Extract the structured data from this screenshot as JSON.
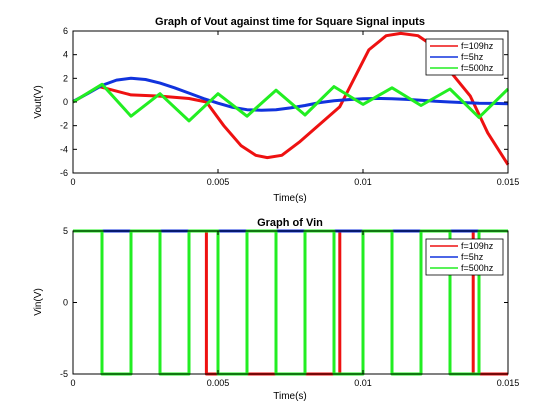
{
  "chart_data": [
    {
      "type": "line",
      "title": "Graph of Vout against time for Square Signal inputs",
      "xlabel": "Time(s)",
      "ylabel": "Vout(V)",
      "xlim": [
        0,
        0.015
      ],
      "ylim": [
        -6,
        6
      ],
      "xticks": [
        0,
        0.005,
        0.01,
        0.015
      ],
      "xtick_labels": [
        "0",
        "0.005",
        "0.01",
        "0.015"
      ],
      "yticks": [
        -6,
        -4,
        -2,
        0,
        2,
        4,
        6
      ],
      "ytick_labels": [
        "-6",
        "-4",
        "-2",
        "0",
        "2",
        "4",
        "6"
      ],
      "grid": false,
      "legend_position": "top-right",
      "series": [
        {
          "name": "f=109hz",
          "color": "#ee1111",
          "x": [
            0,
            0.0009,
            0.002,
            0.003,
            0.004,
            0.0046,
            0.0052,
            0.0058,
            0.0063,
            0.0067,
            0.0072,
            0.0078,
            0.0085,
            0.0092,
            0.0097,
            0.0102,
            0.0108,
            0.0113,
            0.0119,
            0.0125,
            0.013,
            0.0137,
            0.0143,
            0.015
          ],
          "y": [
            0,
            1.3,
            0.6,
            0.5,
            0.3,
            0.0,
            -2.0,
            -3.7,
            -4.5,
            -4.7,
            -4.5,
            -3.4,
            -1.9,
            -0.4,
            2.0,
            4.4,
            5.6,
            5.8,
            5.6,
            4.6,
            2.6,
            0.5,
            -2.6,
            -5.3
          ]
        },
        {
          "name": "f=5hz",
          "color": "#1133dd",
          "x": [
            0,
            0.0005,
            0.001,
            0.0015,
            0.002,
            0.0025,
            0.003,
            0.0035,
            0.004,
            0.0045,
            0.005,
            0.0055,
            0.006,
            0.0065,
            0.007,
            0.0075,
            0.008,
            0.0085,
            0.009,
            0.0095,
            0.01,
            0.0105,
            0.011,
            0.0115,
            0.012,
            0.0125,
            0.013,
            0.0135,
            0.014,
            0.0145,
            0.015
          ],
          "y": [
            0.05,
            0.7,
            1.4,
            1.85,
            2.0,
            1.9,
            1.6,
            1.2,
            0.75,
            0.3,
            -0.1,
            -0.45,
            -0.65,
            -0.7,
            -0.65,
            -0.5,
            -0.3,
            -0.05,
            0.1,
            0.2,
            0.28,
            0.3,
            0.28,
            0.22,
            0.15,
            0.07,
            0.0,
            -0.05,
            -0.1,
            -0.12,
            -0.15
          ]
        },
        {
          "name": "f=500hz",
          "color": "#22ee22",
          "x": [
            0,
            0.001,
            0.002,
            0.003,
            0.004,
            0.005,
            0.006,
            0.007,
            0.008,
            0.009,
            0.01,
            0.011,
            0.012,
            0.013,
            0.014,
            0.015
          ],
          "y": [
            0,
            1.5,
            -1.2,
            0.7,
            -1.6,
            0.7,
            -1.2,
            1.0,
            -1.1,
            1.3,
            -0.2,
            1.2,
            -0.3,
            1.1,
            -1.3,
            1.1
          ]
        }
      ]
    },
    {
      "type": "line",
      "title": "Graph of Vin",
      "xlabel": "Time(s)",
      "ylabel": "Vin(V)",
      "xlim": [
        0,
        0.015
      ],
      "ylim": [
        -5,
        5
      ],
      "xticks": [
        0,
        0.005,
        0.01,
        0.015
      ],
      "xtick_labels": [
        "0",
        "0.005",
        "0.01",
        "0.015"
      ],
      "yticks": [
        -5,
        0,
        5
      ],
      "ytick_labels": [
        "-5",
        "0",
        "5"
      ],
      "grid": false,
      "legend_position": "top-right",
      "series": [
        {
          "name": "f=109hz",
          "color": "#ee1111",
          "x": [
            0,
            0.0046,
            0.0046,
            0.0092,
            0.0092,
            0.0138,
            0.0138,
            0.015
          ],
          "y": [
            5,
            5,
            -5,
            -5,
            5,
            5,
            -5,
            -5
          ]
        },
        {
          "name": "f=5hz",
          "color": "#1133dd",
          "x": [
            0,
            0.015
          ],
          "y": [
            5,
            5
          ]
        },
        {
          "name": "f=500hz",
          "color": "#22ee22",
          "x": [
            0,
            0.001,
            0.001,
            0.002,
            0.002,
            0.003,
            0.003,
            0.004,
            0.004,
            0.005,
            0.005,
            0.006,
            0.006,
            0.007,
            0.007,
            0.008,
            0.008,
            0.009,
            0.009,
            0.01,
            0.01,
            0.011,
            0.011,
            0.012,
            0.012,
            0.013,
            0.013,
            0.014,
            0.014,
            0.015
          ],
          "y": [
            5,
            5,
            -5,
            -5,
            5,
            5,
            -5,
            -5,
            5,
            5,
            -5,
            -5,
            5,
            5,
            -5,
            -5,
            5,
            5,
            -5,
            -5,
            5,
            5,
            -5,
            -5,
            5,
            5,
            -5,
            -5,
            5,
            5
          ]
        }
      ]
    }
  ]
}
